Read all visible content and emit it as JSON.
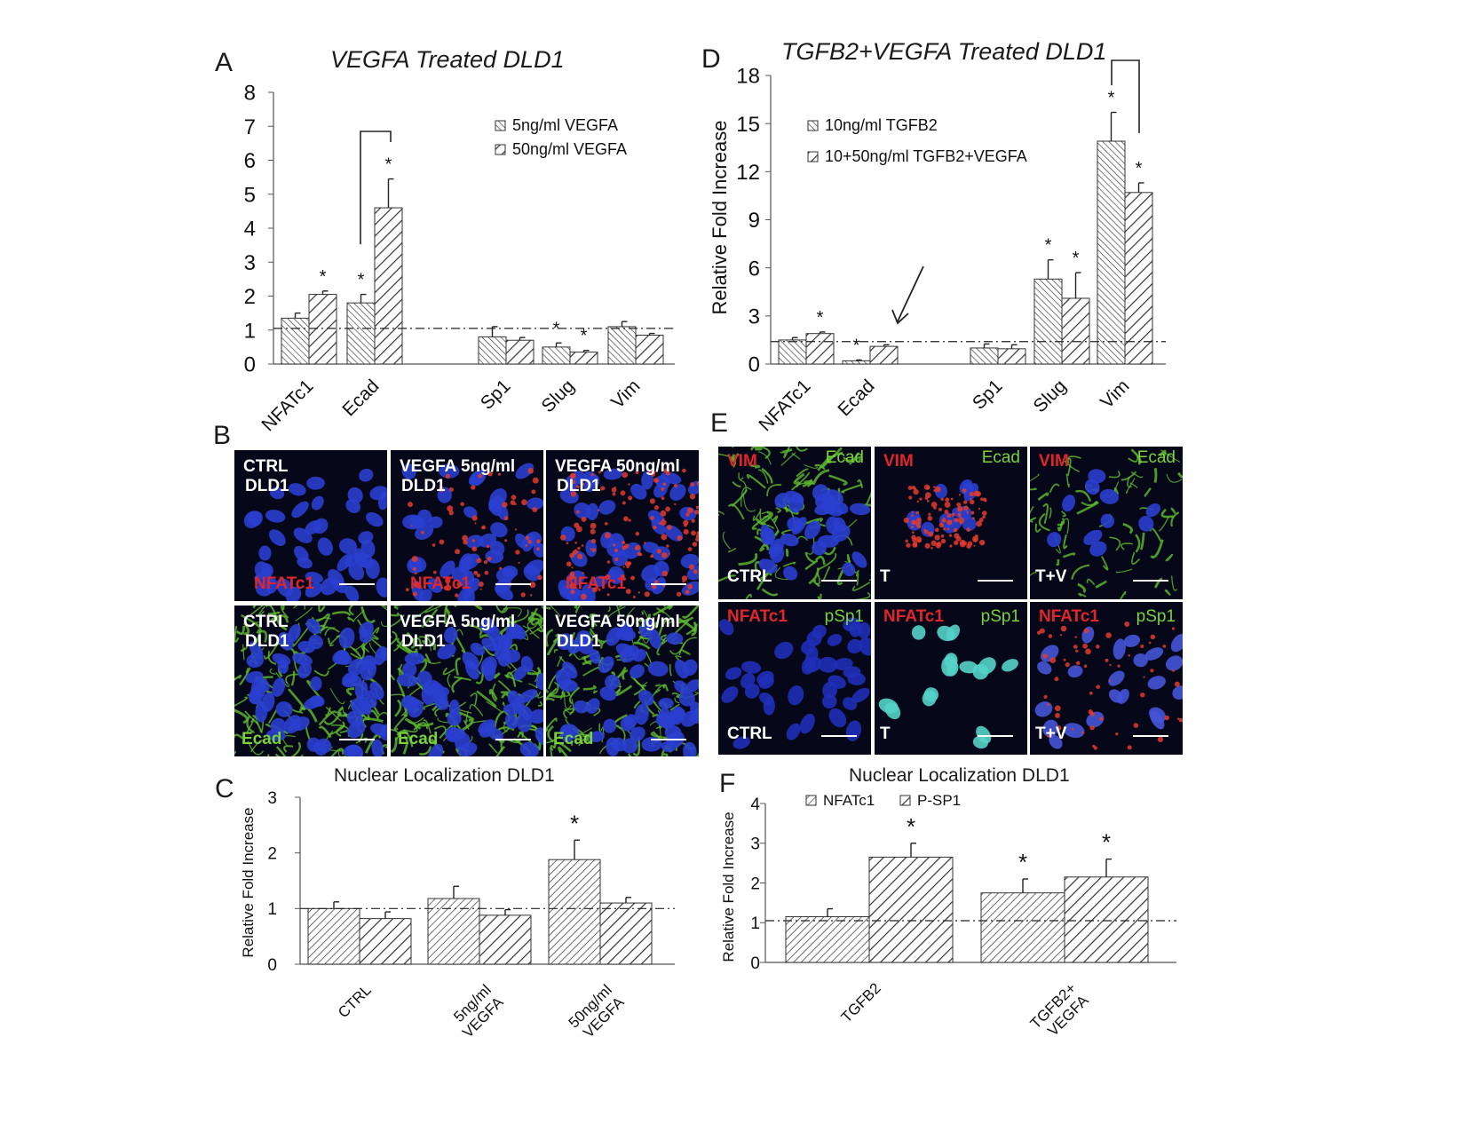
{
  "colors": {
    "hatch": "#333333",
    "blue": "#2a3fcf",
    "red": "#e0262b",
    "green": "#79d13b",
    "white": "#ffffff"
  },
  "panels": {
    "A": {
      "letter": "A",
      "title": "VEGFA Treated DLD1"
    },
    "B": {
      "letter": "B"
    },
    "C": {
      "letter": "C",
      "title": "Nuclear Localization DLD1"
    },
    "D": {
      "letter": "D",
      "title": "TGFB2+VEGFA Treated DLD1"
    },
    "E": {
      "letter": "E"
    },
    "F": {
      "letter": "F",
      "title": "Nuclear Localization DLD1"
    }
  },
  "chart_data": [
    {
      "id": "A",
      "type": "bar",
      "title": "VEGFA Treated DLD1",
      "xlabel": "",
      "ylabel": "",
      "categories": [
        "NFATc1",
        "Ecad",
        "Sp1",
        "Slug",
        "Vim"
      ],
      "series": [
        {
          "name": "5ng/ml VEGFA",
          "values": [
            1.35,
            1.8,
            0.8,
            0.5,
            1.1
          ],
          "errors": [
            0.15,
            0.25,
            0.3,
            0.12,
            0.15
          ]
        },
        {
          "name": "50ng/ml VEGFA",
          "values": [
            2.05,
            4.6,
            0.7,
            0.35,
            0.85
          ],
          "errors": [
            0.1,
            0.85,
            0.08,
            0.05,
            0.05
          ]
        }
      ],
      "yticks": [
        "0",
        "1",
        "2",
        "3",
        "4",
        "5",
        "6",
        "7",
        "8"
      ],
      "ylim": [
        0,
        8
      ],
      "baseline": 1.05,
      "significance": [
        [
          false,
          true
        ],
        [
          true,
          true
        ],
        [
          false,
          false
        ],
        [
          true,
          true
        ],
        [
          false,
          false
        ]
      ],
      "star": "*",
      "legend": "top-right",
      "grid": false
    },
    {
      "id": "D",
      "type": "bar",
      "title": "TGFB2+VEGFA Treated DLD1",
      "xlabel": "",
      "ylabel": "Relative Fold Increase",
      "categories": [
        "NFATc1",
        "Ecad",
        "Sp1",
        "Slug",
        "Vim"
      ],
      "series": [
        {
          "name": "10ng/ml TGFB2",
          "values": [
            1.5,
            0.2,
            1.0,
            5.3,
            13.9
          ],
          "errors": [
            0.15,
            0.05,
            0.25,
            1.2,
            1.8
          ]
        },
        {
          "name": "10+50ng/ml TGFB2+VEGFA",
          "values": [
            1.9,
            1.1,
            0.95,
            4.1,
            10.7
          ],
          "errors": [
            0.1,
            0.1,
            0.25,
            1.6,
            0.6
          ]
        }
      ],
      "yticks": [
        "0",
        "3",
        "6",
        "9",
        "12",
        "15",
        "18"
      ],
      "ylim": [
        0,
        18
      ],
      "baseline": 1.4,
      "significance": [
        [
          false,
          true
        ],
        [
          true,
          false
        ],
        [
          false,
          false
        ],
        [
          true,
          true
        ],
        [
          true,
          true
        ]
      ],
      "star": "*",
      "legend": "top-left",
      "grid": false
    },
    {
      "id": "C",
      "type": "bar",
      "title": "Nuclear Localization DLD1",
      "xlabel": "",
      "ylabel": "Relative Fold Increase",
      "categories": [
        "CTRL",
        "5ng/ml VEGFA",
        "50ng/ml VEGFA"
      ],
      "series": [
        {
          "name": "",
          "values": [
            1.0,
            1.18,
            1.88
          ],
          "errors": [
            0.12,
            0.22,
            0.35
          ]
        },
        {
          "name": "",
          "values": [
            0.82,
            0.88,
            1.1
          ],
          "errors": [
            0.12,
            0.1,
            0.1
          ]
        }
      ],
      "yticks": [
        "0",
        "1",
        "2",
        "3"
      ],
      "ylim": [
        0,
        3
      ],
      "baseline": 1.0,
      "significance": [
        [
          false,
          false
        ],
        [
          false,
          false
        ],
        [
          true,
          false
        ]
      ],
      "star": "*",
      "grid": false
    },
    {
      "id": "F",
      "type": "bar",
      "title": "Nuclear Localization DLD1",
      "xlabel": "",
      "ylabel": "Relative Fold Increase",
      "categories": [
        "TGFB2",
        "TGFB2+ VEGFA"
      ],
      "series": [
        {
          "name": "NFATc1",
          "values": [
            1.15,
            1.75
          ],
          "errors": [
            0.2,
            0.35
          ]
        },
        {
          "name": "P-SP1",
          "values": [
            2.65,
            2.15
          ],
          "errors": [
            0.35,
            0.45
          ]
        }
      ],
      "yticks": [
        "0",
        "1",
        "2",
        "3",
        "4"
      ],
      "ylim": [
        0,
        4
      ],
      "baseline": 1.05,
      "significance": [
        [
          false,
          true
        ],
        [
          true,
          true
        ]
      ],
      "star": "*",
      "legend": "top-left",
      "grid": false
    }
  ],
  "micrographs": {
    "B": [
      {
        "labels": [
          "CTRL",
          "DLD1"
        ],
        "marker": "NFATc1",
        "marker_color": "red"
      },
      {
        "labels": [
          "VEGFA 5ng/ml",
          "DLD1"
        ],
        "marker": "NFATc1",
        "marker_color": "red"
      },
      {
        "labels": [
          "VEGFA 50ng/ml",
          "DLD1"
        ],
        "marker": "NFATc1",
        "marker_color": "red"
      },
      {
        "labels": [
          "CTRL",
          "DLD1"
        ],
        "marker": "Ecad",
        "marker_color": "green"
      },
      {
        "labels": [
          "VEGFA 5ng/ml",
          "DLD1"
        ],
        "marker": "Ecad",
        "marker_color": "green"
      },
      {
        "labels": [
          "VEGFA 50ng/ml",
          "DLD1"
        ],
        "marker": "Ecad",
        "marker_color": "green"
      }
    ],
    "E": [
      {
        "red": "VIM",
        "green": "Ecad",
        "cond": "CTRL"
      },
      {
        "red": "VIM",
        "green": "Ecad",
        "cond": "T"
      },
      {
        "red": "VIM",
        "green": "Ecad",
        "cond": "T+V"
      },
      {
        "red": "NFATc1",
        "green": "pSp1",
        "cond": "CTRL"
      },
      {
        "red": "NFATc1",
        "green": "pSp1",
        "cond": "T"
      },
      {
        "red": "NFATc1",
        "green": "pSp1",
        "cond": "T+V"
      }
    ]
  }
}
